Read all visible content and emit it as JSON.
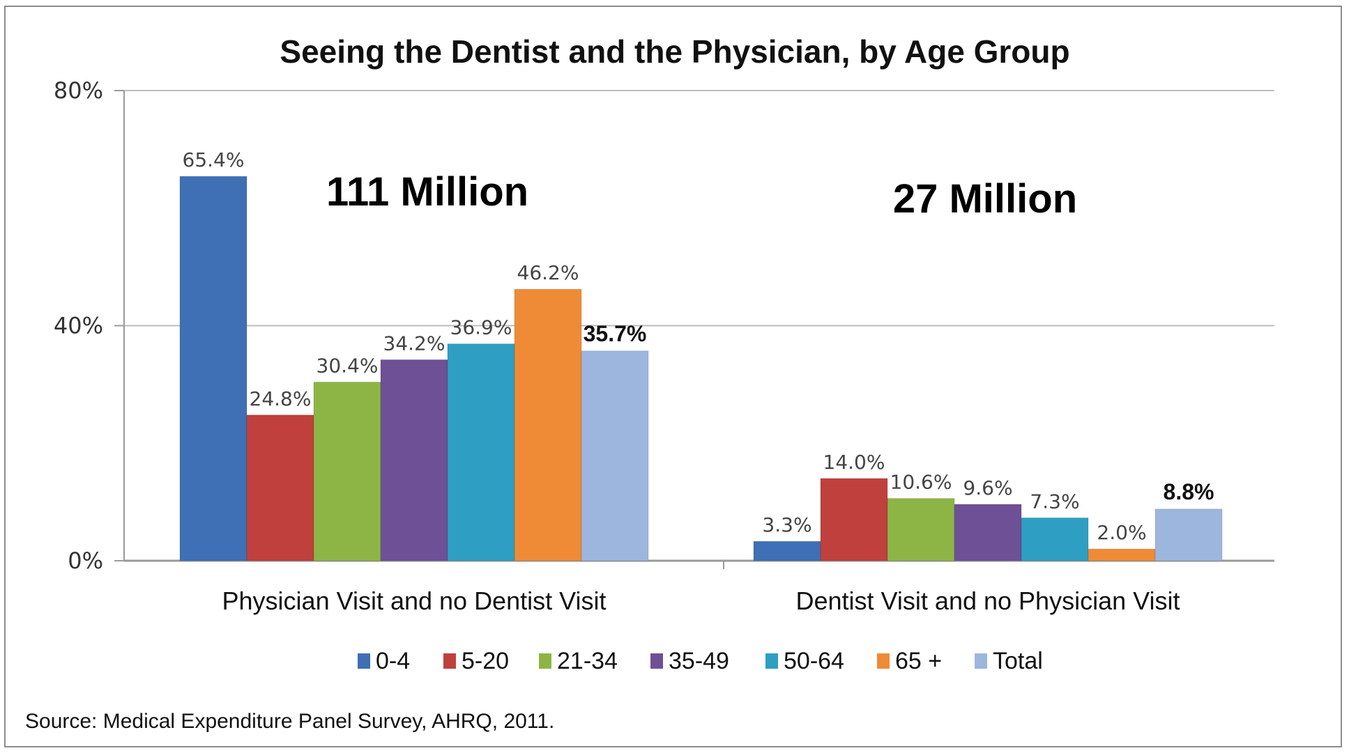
{
  "chart_data": {
    "type": "bar",
    "title": "Seeing the Dentist and the Physician, by Age Group",
    "categories": [
      "Physician Visit and no Dentist Visit",
      "Dentist Visit and no Physician Visit"
    ],
    "series": [
      {
        "name": "0-4",
        "values": [
          65.4,
          3.3
        ],
        "labels": [
          "65.4%",
          "3.3%"
        ],
        "color": "#3f6fb5"
      },
      {
        "name": "5-20",
        "values": [
          24.8,
          14.0
        ],
        "labels": [
          "24.8%",
          "14.0%"
        ],
        "color": "#c0403d"
      },
      {
        "name": "21-34",
        "values": [
          30.4,
          10.6
        ],
        "labels": [
          "30.4%",
          "10.6%"
        ],
        "color": "#8db545"
      },
      {
        "name": "35-49",
        "values": [
          34.2,
          9.6
        ],
        "labels": [
          "34.2%",
          "9.6%"
        ],
        "color": "#6e5097"
      },
      {
        "name": "50-64",
        "values": [
          36.9,
          7.3
        ],
        "labels": [
          "36.9%",
          "7.3%"
        ],
        "color": "#2e9fc2"
      },
      {
        "name": "65 +",
        "values": [
          46.2,
          2.0
        ],
        "labels": [
          "46.2%",
          "2.0%"
        ],
        "color": "#ef8b36"
      },
      {
        "name": "Total",
        "values": [
          35.7,
          8.8
        ],
        "labels": [
          "35.7%",
          "8.8%"
        ],
        "color": "#9db6dd",
        "bold_labels": true
      }
    ],
    "ylim": [
      0,
      80
    ],
    "yticks": [
      0,
      40,
      80
    ],
    "ytick_labels": [
      "0%",
      "40%",
      "80%"
    ],
    "grid": true,
    "legend_position": "bottom",
    "annotations": [
      "111 Million",
      "27 Million"
    ],
    "source": "Source: Medical Expenditure Panel Survey, AHRQ, 2011."
  }
}
